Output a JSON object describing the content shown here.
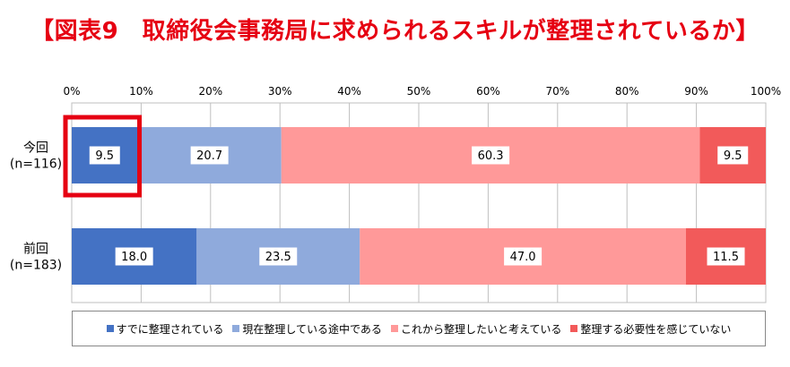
{
  "title": "【図表9　取締役会事務局に求められるスキルが整理されているか】",
  "chart_data": {
    "type": "bar",
    "orientation": "horizontal",
    "stacked": "percent",
    "categories": [
      {
        "label": "今回",
        "sub": "(n=116)"
      },
      {
        "label": "前回",
        "sub": "(n=183)"
      }
    ],
    "series": [
      {
        "name": "すでに整理されている",
        "color": "#4472c4",
        "values": [
          9.5,
          18.0
        ]
      },
      {
        "name": "現在整理している途中である",
        "color": "#8faadc",
        "values": [
          20.7,
          23.5
        ]
      },
      {
        "name": "これから整理したいと考えている",
        "color": "#ff9999",
        "values": [
          60.3,
          47.0
        ]
      },
      {
        "name": "整理する必要性を感じていない",
        "color": "#f25a5a",
        "values": [
          9.5,
          11.5
        ]
      }
    ],
    "xlim": [
      0,
      100
    ],
    "xticks": [
      "0%",
      "10%",
      "20%",
      "30%",
      "40%",
      "50%",
      "60%",
      "70%",
      "80%",
      "90%",
      "100%"
    ],
    "grid": true,
    "legend_position": "bottom",
    "highlight": {
      "category": 0,
      "series": 0,
      "color": "#e60012"
    }
  }
}
